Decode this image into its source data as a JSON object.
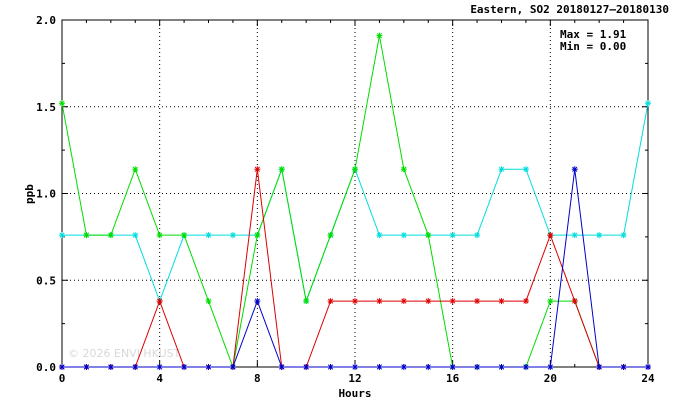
{
  "chart_data": {
    "type": "line",
    "title": "Eastern, SO2 20180127–20180130",
    "xlabel": "Hours",
    "ylabel": "ppb",
    "xlim": [
      0,
      24
    ],
    "ylim": [
      0,
      2.0
    ],
    "x_ticks": [
      0,
      4,
      8,
      12,
      16,
      20,
      24
    ],
    "y_ticks": [
      0.0,
      0.5,
      1.0,
      1.5,
      2.0
    ],
    "x_tick_labels": [
      "0",
      "4",
      "8",
      "12",
      "16",
      "20",
      "24"
    ],
    "y_tick_labels": [
      "0.0",
      "0.5",
      "1.0",
      "1.5",
      "2.0"
    ],
    "grid": true,
    "stats": {
      "max": "Max = 1.91",
      "min": "Min = 0.00"
    },
    "x": [
      0,
      1,
      2,
      3,
      4,
      5,
      6,
      7,
      8,
      9,
      10,
      11,
      12,
      13,
      14,
      15,
      16,
      17,
      18,
      19,
      20,
      21,
      22,
      23,
      24
    ],
    "series": [
      {
        "color": "#00dddd",
        "values": [
          0.76,
          0.76,
          0.76,
          0.76,
          0.38,
          0.76,
          0.76,
          0.76,
          0.76,
          1.14,
          0.38,
          0.76,
          1.14,
          0.76,
          0.76,
          0.76,
          0.76,
          0.76,
          1.14,
          1.14,
          0.76,
          0.76,
          0.76,
          0.76,
          1.52
        ]
      },
      {
        "color": "#00dd00",
        "values": [
          1.52,
          0.76,
          0.76,
          1.14,
          0.76,
          0.76,
          0.38,
          0.0,
          0.76,
          1.14,
          0.38,
          0.76,
          1.14,
          1.91,
          1.14,
          0.76,
          0.0,
          0.0,
          0.0,
          0.0,
          0.38,
          0.38,
          0.0,
          null,
          null
        ]
      },
      {
        "color": "#dd0000",
        "values": [
          0.0,
          0.0,
          0.0,
          0.0,
          0.38,
          0.0,
          0.0,
          0.0,
          1.14,
          0.0,
          0.0,
          0.38,
          0.38,
          0.38,
          0.38,
          0.38,
          0.38,
          0.38,
          0.38,
          0.38,
          0.76,
          0.38,
          0.0,
          0.0,
          0.0
        ]
      },
      {
        "color": "#0000cc",
        "values": [
          0.0,
          0.0,
          0.0,
          0.0,
          0.0,
          0.0,
          0.0,
          0.0,
          0.38,
          0.0,
          0.0,
          0.0,
          0.0,
          0.0,
          0.0,
          0.0,
          0.0,
          0.0,
          0.0,
          0.0,
          0.0,
          1.14,
          0.0,
          0.0,
          0.0
        ]
      }
    ],
    "watermark": "© 2026 ENVI HKUST"
  }
}
